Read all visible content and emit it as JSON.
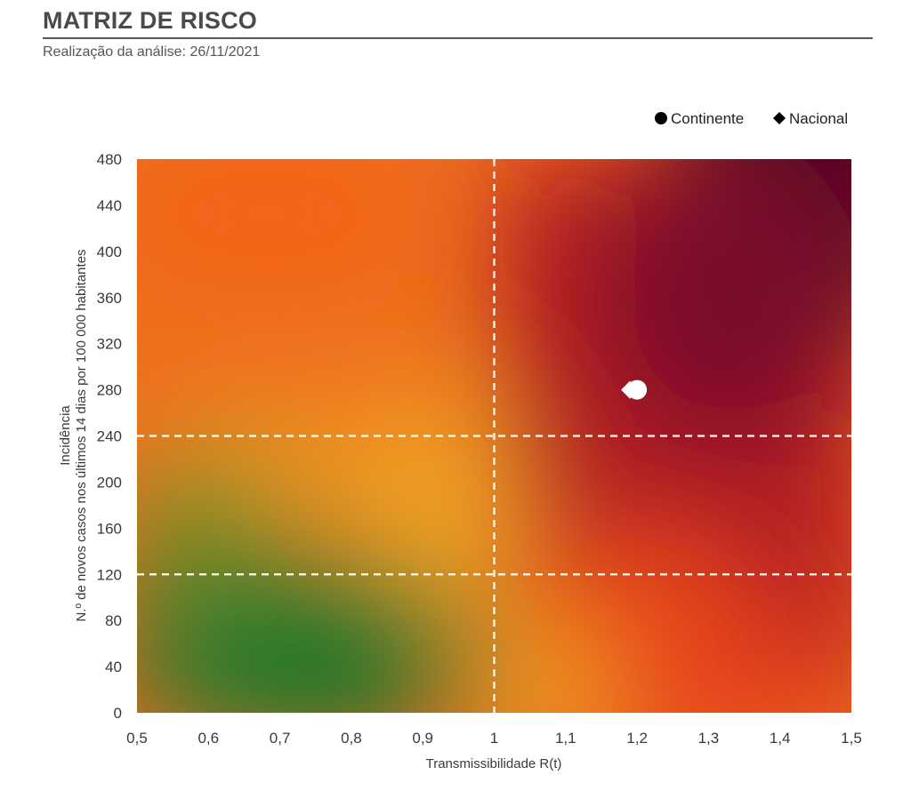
{
  "header": {
    "title": "MATRIZ DE RISCO",
    "subtitle": "Realização da análise: 26/11/2021"
  },
  "chart_data": {
    "type": "scatter",
    "xlabel": "Transmissibilidade R(t)",
    "ylabel_line1": "Incidência",
    "ylabel_line2": "N.º de novos casos nos últimos 14 dias por 100 000 habitantes",
    "xlim": [
      0.5,
      1.5
    ],
    "ylim": [
      0,
      480
    ],
    "x_ticks": [
      "0,5",
      "0,6",
      "0,7",
      "0,8",
      "0,9",
      "1",
      "1,1",
      "1,2",
      "1,3",
      "1,4",
      "1,5"
    ],
    "y_ticks": [
      "0",
      "40",
      "80",
      "120",
      "160",
      "200",
      "240",
      "280",
      "320",
      "360",
      "400",
      "440",
      "480"
    ],
    "thresholds": {
      "x": [
        1
      ],
      "y": [
        120,
        240
      ]
    },
    "legend_position": "top-right",
    "series": [
      {
        "name": "Continente",
        "marker": "circle",
        "color": "#ffffff",
        "points": [
          {
            "x": 1.2,
            "y": 280
          }
        ]
      },
      {
        "name": "Nacional",
        "marker": "diamond",
        "color": "#ffffff",
        "points": [
          {
            "x": 1.19,
            "y": 280
          }
        ]
      }
    ],
    "legend": [
      {
        "label": "Continente",
        "marker": "circle",
        "color": "#000000"
      },
      {
        "label": "Nacional",
        "marker": "diamond",
        "color": "#000000"
      }
    ],
    "background_colors": {
      "low_risk": "#1e7a2e",
      "mid_risk": "#f5a623",
      "elevated_risk": "#f26a1b",
      "high_risk": "#b01d24",
      "extreme_risk": "#3c0020"
    }
  }
}
